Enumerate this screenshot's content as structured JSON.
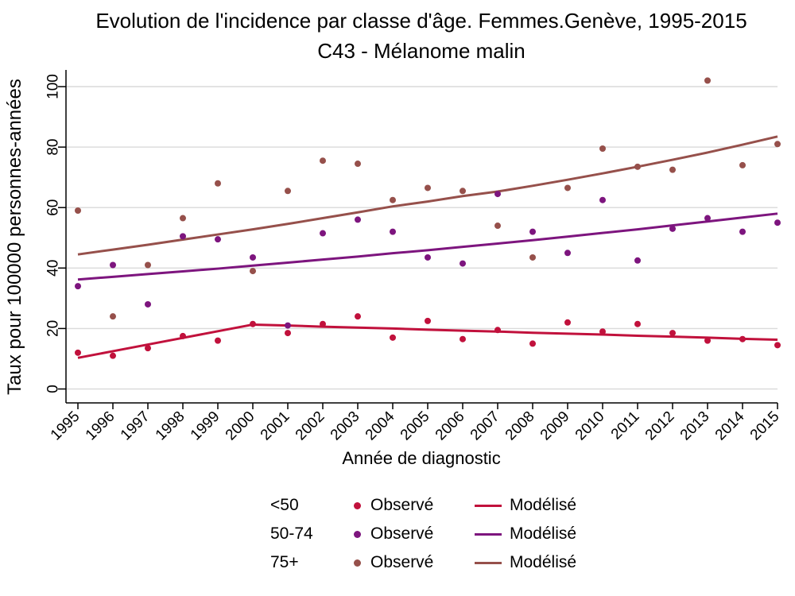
{
  "title": "Evolution de l'incidence par classe d'âge. Femmes.Genève, 1995-2015",
  "subtitle": "C43 - Mélanome malin",
  "colors": {
    "red": "#C1113C",
    "purple": "#7D157E",
    "brown": "#96504B",
    "grid": "#DADADA",
    "axis": "#000000"
  },
  "chart_data": {
    "type": "scatter",
    "title": "Evolution de l'incidence par classe d'âge. Femmes.Genève, 1995-2015",
    "subtitle": "C43 - Mélanome malin",
    "xlabel": "Année de diagnostic",
    "ylabel": "Taux pour 100000 personnes-années",
    "xlim": [
      1995,
      2015
    ],
    "ylim": [
      0,
      100
    ],
    "yticks": [
      0,
      20,
      40,
      60,
      80,
      100
    ],
    "grid": "horizontal",
    "legend_position": "bottom",
    "x": [
      1995,
      1996,
      1997,
      1998,
      1999,
      2000,
      2001,
      2002,
      2003,
      2004,
      2005,
      2006,
      2007,
      2008,
      2009,
      2010,
      2011,
      2012,
      2013,
      2014,
      2015
    ],
    "series": [
      {
        "name": "<50 Observé",
        "kind": "scatter",
        "color": "#C1113C",
        "values": [
          12,
          11,
          13.5,
          17.5,
          16,
          21.5,
          18.5,
          21.5,
          24,
          17,
          22.5,
          16.5,
          19.5,
          15,
          22,
          19,
          21.5,
          18.5,
          16,
          16.5,
          14.5
        ]
      },
      {
        "name": "<50 Modélisé",
        "kind": "line",
        "color": "#C1113C",
        "values": [
          10.3,
          12.5,
          14.7,
          16.9,
          19.1,
          21.3,
          21.0,
          20.6,
          20.3,
          20.0,
          19.6,
          19.3,
          19.0,
          18.6,
          18.3,
          18.0,
          17.6,
          17.3,
          17.0,
          16.6,
          16.3
        ]
      },
      {
        "name": "50-74 Observé",
        "kind": "scatter",
        "color": "#7D157E",
        "values": [
          34,
          41,
          28,
          50.5,
          49.5,
          43.5,
          21,
          51.5,
          56,
          52,
          43.5,
          41.5,
          64.5,
          52,
          45,
          62.5,
          42.5,
          53,
          56.5,
          52,
          55
        ]
      },
      {
        "name": "50-74 Modélisé",
        "kind": "line",
        "color": "#7D157E",
        "values": [
          36.2,
          37.1,
          38.0,
          38.9,
          39.8,
          40.8,
          41.8,
          42.8,
          43.8,
          44.9,
          45.9,
          47.0,
          48.1,
          49.2,
          50.4,
          51.6,
          52.8,
          54.1,
          55.4,
          56.7,
          58.0
        ]
      },
      {
        "name": "75+ Observé",
        "kind": "scatter",
        "color": "#96504B",
        "values": [
          59,
          24,
          41,
          56.5,
          68,
          39,
          65.5,
          75.5,
          74.5,
          62.5,
          66.5,
          65.5,
          54,
          43.5,
          66.5,
          79.5,
          73.5,
          72.5,
          102,
          74,
          81
        ]
      },
      {
        "name": "75+ Modélisé",
        "kind": "line",
        "color": "#96504B",
        "values": [
          44.5,
          46.1,
          47.7,
          49.4,
          51.1,
          52.8,
          54.6,
          56.5,
          58.4,
          60.4,
          62.0,
          63.8,
          65.3,
          67.2,
          69.2,
          71.3,
          73.5,
          75.8,
          78.2,
          80.8,
          83.5
        ]
      }
    ]
  },
  "legend": {
    "rows": [
      {
        "group": "<50",
        "observed_label": "Observé",
        "modelled_label": "Modélisé",
        "color": "#C1113C"
      },
      {
        "group": "50-74",
        "observed_label": "Observé",
        "modelled_label": "Modélisé",
        "color": "#7D157E"
      },
      {
        "group": "75+",
        "observed_label": "Observé",
        "modelled_label": "Modélisé",
        "color": "#96504B"
      }
    ]
  }
}
